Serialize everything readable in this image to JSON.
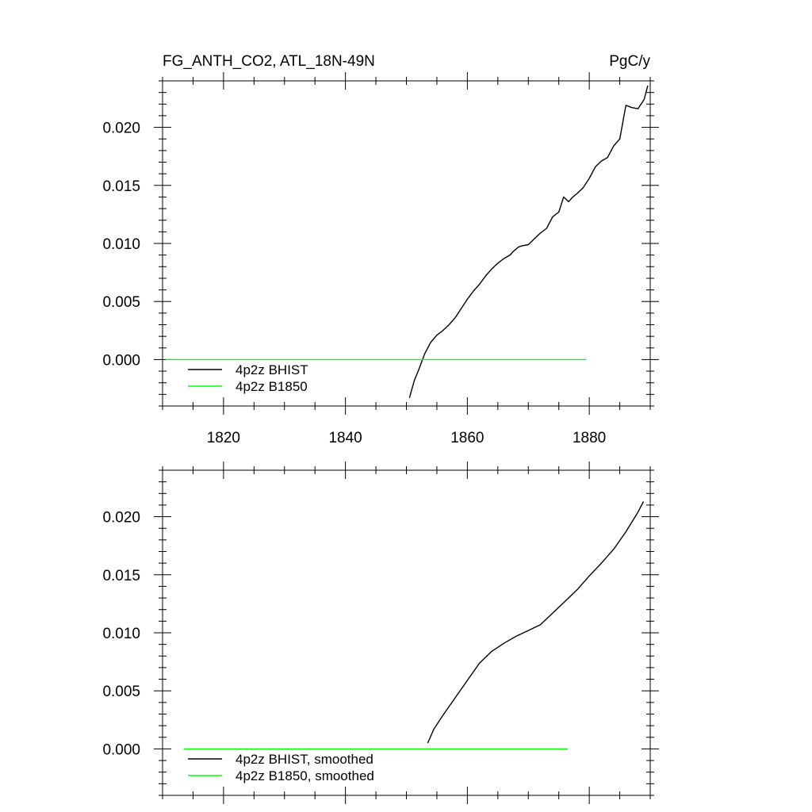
{
  "header": {
    "title": "FG_ANTH_CO2, ATL_18N-49N",
    "units": "PgC/y"
  },
  "colors": {
    "series_bhist": "#000000",
    "series_b1850": "#00ff00",
    "axes": "#000000"
  },
  "chart_data": [
    {
      "type": "line",
      "title": "FG_ANTH_CO2, ATL_18N-49N",
      "units_label": "PgC/y",
      "xlabel": "",
      "ylabel": "",
      "xlim": [
        1810,
        1890
      ],
      "ylim": [
        -0.004,
        0.024
      ],
      "x_ticks": [
        "1820",
        "1840",
        "1860",
        "1880"
      ],
      "y_ticks": [
        "0.000",
        "0.005",
        "0.010",
        "0.015",
        "0.020"
      ],
      "grid": false,
      "legend_position": "bottom-left",
      "series": [
        {
          "name": "4p2z BHIST",
          "color": "#000000",
          "x": [
            1850.5,
            1851.3,
            1852,
            1853,
            1854,
            1855,
            1856,
            1857,
            1858,
            1859,
            1860,
            1861,
            1862,
            1863,
            1864,
            1865,
            1866,
            1867,
            1867.5,
            1868.4,
            1869,
            1870,
            1871,
            1872,
            1873,
            1874,
            1875,
            1875.8,
            1876.6,
            1877.3,
            1878,
            1879,
            1880,
            1881,
            1882,
            1883,
            1884,
            1885,
            1886,
            1887,
            1888,
            1889,
            1889.6
          ],
          "y": [
            -0.0033,
            -0.0018,
            -0.0009,
            0.0005,
            0.0015,
            0.0021,
            0.0025,
            0.003,
            0.0036,
            0.0044,
            0.0052,
            0.0059,
            0.0065,
            0.0072,
            0.0078,
            0.0083,
            0.0087,
            0.009,
            0.0093,
            0.0097,
            0.0098,
            0.0099,
            0.0104,
            0.0109,
            0.0113,
            0.0123,
            0.0127,
            0.014,
            0.0136,
            0.014,
            0.0143,
            0.0148,
            0.0156,
            0.0166,
            0.0171,
            0.0174,
            0.0184,
            0.019,
            0.0219,
            0.0217,
            0.0216,
            0.0224,
            0.0236
          ]
        },
        {
          "name": "4p2z B1850",
          "color": "#00ff00",
          "x": [
            1810.5,
            1879.5
          ],
          "y": [
            0.0,
            0.0
          ]
        }
      ]
    },
    {
      "type": "line",
      "title": "",
      "xlabel": "",
      "ylabel": "",
      "xlim": [
        1810,
        1890
      ],
      "ylim": [
        -0.004,
        0.024
      ],
      "x_ticks": [],
      "y_ticks": [
        "0.000",
        "0.005",
        "0.010",
        "0.015",
        "0.020"
      ],
      "grid": false,
      "legend_position": "bottom-left",
      "series": [
        {
          "name": "4p2z BHIST, smoothed",
          "color": "#000000",
          "x": [
            1853.5,
            1854.5,
            1856,
            1858,
            1860,
            1862,
            1864,
            1866,
            1868,
            1870,
            1872,
            1874,
            1876,
            1878,
            1880,
            1882,
            1884,
            1886,
            1888,
            1888.9
          ],
          "y": [
            0.0005,
            0.0017,
            0.0029,
            0.0044,
            0.0059,
            0.0074,
            0.0084,
            0.0091,
            0.0097,
            0.0102,
            0.0107,
            0.0117,
            0.0127,
            0.0137,
            0.0149,
            0.016,
            0.0172,
            0.0187,
            0.0204,
            0.0213
          ]
        },
        {
          "name": "4p2z B1850, smoothed",
          "color": "#00ff00",
          "x": [
            1813.5,
            1876.5
          ],
          "y": [
            0.0,
            0.0
          ]
        }
      ]
    }
  ]
}
